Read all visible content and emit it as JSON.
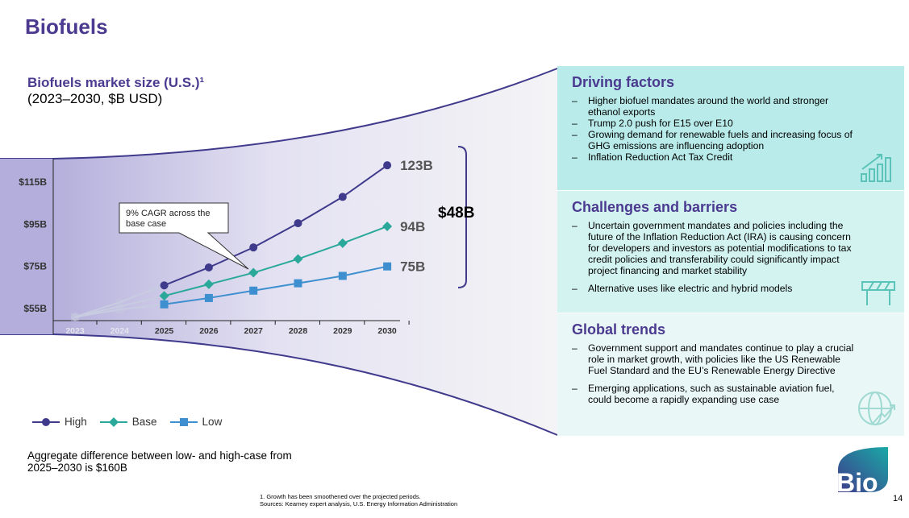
{
  "slide": {
    "title": "Biofuels",
    "page_number": "14",
    "logo_text": "Bio",
    "aggregate_note": "Aggregate difference between low- and high-case from 2025–2030 is $160B",
    "footnote_1": "1. Growth has been smoothened over the projected periods.",
    "footnote_2": "Sources: Kearney expert analysis, U.S. Energy Information Administration"
  },
  "chart_data": {
    "type": "line",
    "title": "Biofuels market size (U.S.)¹",
    "subtitle": "(2023–2030, $B USD)",
    "x": [
      "2023",
      "2024",
      "2025",
      "2026",
      "2027",
      "2028",
      "2029",
      "2030"
    ],
    "y_ticks": [
      "$55B",
      "$75B",
      "$95B",
      "$115B"
    ],
    "ylim": [
      51,
      125
    ],
    "series": [
      {
        "name": "High",
        "color": "#3f3a8c",
        "marker": "circle",
        "values": [
          51,
          58,
          66,
          74.5,
          84,
          95.5,
          108,
          123
        ]
      },
      {
        "name": "Base",
        "color": "#2aa99a",
        "marker": "diamond",
        "values": [
          51,
          56,
          61,
          66.5,
          72,
          78.5,
          86,
          94
        ]
      },
      {
        "name": "Low",
        "color": "#3e8fd0",
        "marker": "square",
        "values": [
          51,
          54.5,
          57,
          60,
          63.5,
          67,
          70.5,
          75
        ]
      }
    ],
    "end_labels": [
      "123B",
      "94B",
      "75B"
    ],
    "bracket_label": "$48B",
    "callout": "9% CAGR across the base case",
    "legend_position": "bottom-left",
    "grid": false
  },
  "panels": [
    {
      "title": "Driving factors",
      "icon": "bar-chart-growth-icon",
      "items": [
        "Higher biofuel mandates around the world and stronger ethanol exports",
        "Trump 2.0 push for E15 over E10",
        "Growing demand for renewable fuels and increasing focus of GHG emissions are influencing adoption",
        "Inflation Reduction Act Tax Credit"
      ]
    },
    {
      "title": "Challenges and barriers",
      "icon": "road-barrier-icon",
      "items": [
        "Uncertain government mandates and policies including the future of the Inflation Reduction Act (IRA) is causing concern for developers and investors as potential modifications to tax credit policies and transferability could significantly impact project financing and market stability",
        "Alternative uses like electric and hybrid models"
      ]
    },
    {
      "title": "Global trends",
      "icon": "globe-growth-icon",
      "items": [
        "Government support and mandates continue to play a crucial role in market growth, with policies like the US Renewable Fuel Standard and the EU’s Renewable Energy Directive",
        "Emerging applications, such as sustainable aviation fuel, could become a rapidly expanding use case"
      ]
    }
  ]
}
